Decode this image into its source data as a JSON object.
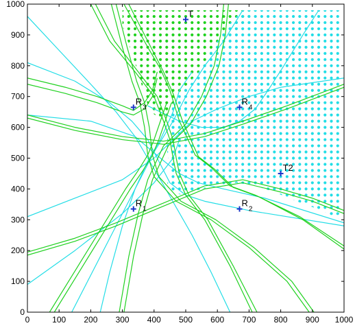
{
  "chart_data": {
    "type": "scatter",
    "title": "",
    "xlabel": "",
    "ylabel": "",
    "xlim": [
      0,
      1000
    ],
    "ylim": [
      0,
      1000
    ],
    "xticks": [
      0,
      100,
      200,
      300,
      400,
      500,
      600,
      700,
      800,
      900,
      1000
    ],
    "yticks": [
      0,
      100,
      200,
      300,
      400,
      500,
      600,
      700,
      800,
      900,
      1000
    ],
    "grid": false,
    "legend": "none",
    "colors": {
      "green": "#1fd11f",
      "cyan": "#22dde6",
      "marker": "#1a35c8",
      "axes": "#000000"
    },
    "markers": [
      {
        "id": "R1",
        "main": "R",
        "sub": "1",
        "x": 335,
        "y": 335
      },
      {
        "id": "R2",
        "main": "R",
        "sub": "2",
        "x": 670,
        "y": 335
      },
      {
        "id": "R3",
        "main": "R",
        "sub": "3",
        "x": 335,
        "y": 665
      },
      {
        "id": "R4",
        "main": "R",
        "sub": "4",
        "x": 670,
        "y": 665
      },
      {
        "id": "T1",
        "main": "T",
        "sub": "",
        "x": 500,
        "y": 950
      },
      {
        "id": "T2",
        "main": "T2",
        "sub": "",
        "x": 800,
        "y": 450
      }
    ],
    "regions": [
      {
        "name": "",
        "color": "green",
        "spacing": 20,
        "polygon": [
          [
            300,
            980
          ],
          [
            720,
            980
          ],
          [
            640,
            900
          ],
          [
            590,
            830
          ],
          [
            550,
            790
          ],
          [
            505,
            740
          ],
          [
            460,
            680
          ],
          [
            445,
            650
          ],
          [
            430,
            620
          ],
          [
            390,
            650
          ],
          [
            370,
            700
          ],
          [
            355,
            760
          ],
          [
            330,
            840
          ],
          [
            300,
            930
          ]
        ]
      },
      {
        "name": "",
        "color": "cyan",
        "spacing": 20,
        "polygon": [
          [
            460,
            680
          ],
          [
            505,
            740
          ],
          [
            550,
            790
          ],
          [
            580,
            850
          ],
          [
            640,
            940
          ],
          [
            680,
            980
          ],
          [
            990,
            980
          ],
          [
            990,
            300
          ],
          [
            930,
            330
          ],
          [
            850,
            360
          ],
          [
            780,
            390
          ],
          [
            720,
            410
          ],
          [
            660,
            420
          ],
          [
            600,
            410
          ],
          [
            550,
            400
          ],
          [
            490,
            380
          ],
          [
            455,
            390
          ],
          [
            440,
            410
          ],
          [
            450,
            450
          ],
          [
            445,
            490
          ],
          [
            440,
            540
          ],
          [
            445,
            600
          ]
        ]
      }
    ],
    "series": [
      {
        "color": "green",
        "points": [
          [
            305,
            1000
          ],
          [
            380,
            860
          ],
          [
            420,
            790
          ],
          [
            450,
            720
          ],
          [
            480,
            620
          ],
          [
            530,
            510
          ],
          [
            580,
            470
          ],
          [
            640,
            410
          ],
          [
            720,
            380
          ],
          [
            860,
            310
          ],
          [
            1000,
            215
          ]
        ]
      },
      {
        "color": "green",
        "points": [
          [
            320,
            1000
          ],
          [
            390,
            860
          ],
          [
            430,
            780
          ],
          [
            460,
            710
          ],
          [
            490,
            620
          ],
          [
            540,
            505
          ],
          [
            590,
            465
          ],
          [
            650,
            405
          ],
          [
            730,
            375
          ],
          [
            870,
            300
          ],
          [
            1000,
            205
          ]
        ]
      },
      {
        "color": "green",
        "points": [
          [
            200,
            1000
          ],
          [
            260,
            880
          ],
          [
            340,
            780
          ],
          [
            400,
            700
          ],
          [
            430,
            620
          ],
          [
            450,
            560
          ],
          [
            460,
            500
          ],
          [
            470,
            450
          ],
          [
            500,
            380
          ],
          [
            560,
            300
          ],
          [
            640,
            150
          ],
          [
            710,
            0
          ]
        ]
      },
      {
        "color": "green",
        "points": [
          [
            215,
            1000
          ],
          [
            275,
            880
          ],
          [
            350,
            780
          ],
          [
            410,
            700
          ],
          [
            440,
            620
          ],
          [
            460,
            560
          ],
          [
            470,
            500
          ],
          [
            480,
            450
          ],
          [
            510,
            380
          ],
          [
            570,
            300
          ],
          [
            650,
            150
          ],
          [
            725,
            0
          ]
        ]
      },
      {
        "color": "green",
        "points": [
          [
            265,
            1000
          ],
          [
            300,
            860
          ],
          [
            330,
            750
          ],
          [
            355,
            680
          ],
          [
            370,
            600
          ],
          [
            380,
            510
          ],
          [
            400,
            440
          ],
          [
            470,
            360
          ],
          [
            580,
            300
          ],
          [
            700,
            210
          ],
          [
            820,
            100
          ],
          [
            890,
            0
          ]
        ]
      },
      {
        "color": "green",
        "points": [
          [
            280,
            1000
          ],
          [
            315,
            860
          ],
          [
            345,
            750
          ],
          [
            370,
            680
          ],
          [
            385,
            600
          ],
          [
            395,
            510
          ],
          [
            415,
            440
          ],
          [
            485,
            360
          ],
          [
            595,
            300
          ],
          [
            715,
            210
          ],
          [
            835,
            100
          ],
          [
            905,
            0
          ]
        ]
      },
      {
        "color": "green",
        "points": [
          [
            620,
            1000
          ],
          [
            610,
            900
          ],
          [
            590,
            800
          ],
          [
            550,
            700
          ],
          [
            500,
            610
          ],
          [
            430,
            540
          ],
          [
            380,
            430
          ],
          [
            350,
            320
          ],
          [
            320,
            180
          ],
          [
            290,
            0
          ]
        ]
      },
      {
        "color": "green",
        "points": [
          [
            635,
            1000
          ],
          [
            625,
            900
          ],
          [
            605,
            800
          ],
          [
            565,
            700
          ],
          [
            515,
            610
          ],
          [
            445,
            540
          ],
          [
            395,
            430
          ],
          [
            365,
            320
          ],
          [
            335,
            180
          ],
          [
            305,
            0
          ]
        ]
      },
      {
        "color": "green",
        "points": [
          [
            0,
            740
          ],
          [
            120,
            710
          ],
          [
            220,
            680
          ],
          [
            300,
            650
          ],
          [
            335,
            640
          ],
          [
            370,
            660
          ],
          [
            395,
            700
          ],
          [
            410,
            760
          ]
        ]
      },
      {
        "color": "green",
        "points": [
          [
            0,
            760
          ],
          [
            120,
            730
          ],
          [
            220,
            700
          ],
          [
            300,
            670
          ],
          [
            335,
            655
          ],
          [
            370,
            680
          ],
          [
            395,
            720
          ],
          [
            410,
            780
          ]
        ]
      },
      {
        "color": "green",
        "points": [
          [
            0,
            640
          ],
          [
            150,
            600
          ],
          [
            300,
            570
          ],
          [
            430,
            555
          ],
          [
            560,
            580
          ],
          [
            680,
            620
          ],
          [
            820,
            670
          ],
          [
            1000,
            740
          ]
        ]
      },
      {
        "color": "green",
        "points": [
          [
            0,
            630
          ],
          [
            150,
            590
          ],
          [
            300,
            560
          ],
          [
            430,
            545
          ],
          [
            560,
            570
          ],
          [
            680,
            610
          ],
          [
            820,
            660
          ],
          [
            1000,
            730
          ]
        ]
      },
      {
        "color": "green",
        "points": [
          [
            0,
            195
          ],
          [
            150,
            240
          ],
          [
            280,
            290
          ],
          [
            420,
            350
          ],
          [
            560,
            410
          ],
          [
            680,
            430
          ],
          [
            800,
            400
          ],
          [
            900,
            370
          ],
          [
            1000,
            330
          ]
        ]
      },
      {
        "color": "green",
        "points": [
          [
            0,
            185
          ],
          [
            150,
            230
          ],
          [
            280,
            280
          ],
          [
            420,
            340
          ],
          [
            560,
            400
          ],
          [
            680,
            420
          ],
          [
            800,
            390
          ],
          [
            900,
            360
          ],
          [
            1000,
            320
          ]
        ]
      },
      {
        "color": "green",
        "points": [
          [
            70,
            0
          ],
          [
            160,
            150
          ],
          [
            250,
            300
          ],
          [
            310,
            400
          ],
          [
            350,
            460
          ],
          [
            380,
            510
          ],
          [
            400,
            560
          ],
          [
            420,
            620
          ],
          [
            440,
            680
          ]
        ]
      },
      {
        "color": "green",
        "points": [
          [
            85,
            0
          ],
          [
            175,
            150
          ],
          [
            265,
            300
          ],
          [
            325,
            400
          ],
          [
            365,
            460
          ],
          [
            395,
            510
          ],
          [
            415,
            560
          ],
          [
            435,
            620
          ],
          [
            455,
            680
          ]
        ]
      },
      {
        "color": "cyan",
        "points": [
          [
            0,
            960
          ],
          [
            100,
            850
          ],
          [
            200,
            740
          ],
          [
            280,
            650
          ],
          [
            340,
            570
          ],
          [
            380,
            500
          ],
          [
            420,
            430
          ],
          [
            470,
            340
          ],
          [
            520,
            250
          ],
          [
            580,
            130
          ],
          [
            640,
            0
          ]
        ]
      },
      {
        "color": "cyan",
        "points": [
          [
            0,
            640
          ],
          [
            200,
            620
          ],
          [
            340,
            570
          ],
          [
            420,
            500
          ],
          [
            480,
            450
          ],
          [
            540,
            420
          ],
          [
            620,
            400
          ],
          [
            750,
            370
          ],
          [
            1000,
            290
          ]
        ]
      },
      {
        "color": "cyan",
        "points": [
          [
            0,
            810
          ],
          [
            150,
            750
          ],
          [
            260,
            680
          ],
          [
            330,
            620
          ],
          [
            380,
            560
          ],
          [
            420,
            480
          ],
          [
            450,
            420
          ],
          [
            500,
            380
          ],
          [
            560,
            360
          ],
          [
            700,
            330
          ],
          [
            1000,
            280
          ]
        ]
      },
      {
        "color": "cyan",
        "points": [
          [
            0,
            310
          ],
          [
            150,
            370
          ],
          [
            300,
            430
          ],
          [
            400,
            500
          ],
          [
            460,
            560
          ],
          [
            520,
            620
          ],
          [
            600,
            660
          ],
          [
            700,
            700
          ],
          [
            800,
            730
          ],
          [
            1000,
            760
          ]
        ]
      },
      {
        "color": "cyan",
        "points": [
          [
            0,
            90
          ],
          [
            150,
            200
          ],
          [
            300,
            320
          ],
          [
            400,
            420
          ],
          [
            460,
            500
          ],
          [
            480,
            560
          ]
        ]
      },
      {
        "color": "cyan",
        "points": [
          [
            140,
            0
          ],
          [
            200,
            120
          ],
          [
            260,
            240
          ],
          [
            330,
            380
          ],
          [
            400,
            520
          ],
          [
            460,
            620
          ],
          [
            510,
            720
          ],
          [
            560,
            800
          ],
          [
            620,
            880
          ],
          [
            680,
            980
          ]
        ]
      },
      {
        "color": "cyan",
        "points": [
          [
            230,
            0
          ],
          [
            260,
            130
          ],
          [
            300,
            280
          ],
          [
            340,
            400
          ],
          [
            380,
            490
          ],
          [
            420,
            560
          ],
          [
            460,
            650
          ],
          [
            480,
            720
          ],
          [
            520,
            780
          ]
        ]
      },
      {
        "color": "cyan",
        "points": [
          [
            920,
            980
          ],
          [
            870,
            900
          ],
          [
            810,
            800
          ],
          [
            760,
            720
          ],
          [
            720,
            660
          ],
          [
            670,
            620
          ],
          [
            620,
            600
          ],
          [
            550,
            600
          ],
          [
            480,
            620
          ],
          [
            420,
            650
          ],
          [
            380,
            670
          ]
        ]
      }
    ]
  }
}
